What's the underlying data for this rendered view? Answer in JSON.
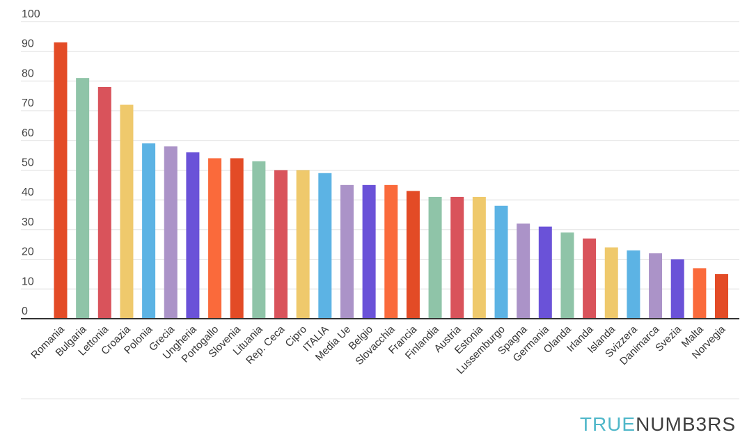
{
  "chart_data": {
    "type": "bar",
    "categories": [
      "Romania",
      "Bulgaria",
      "Lettonia",
      "Croazia",
      "Polonia",
      "Grecia",
      "Ungheria",
      "Portogallo",
      "Slovenia",
      "Lituania",
      "Rep. Ceca",
      "Cipro",
      "ITALIA",
      "Media Ue",
      "Belgio",
      "Slovacchia",
      "Francia",
      "Finlandia",
      "Austria",
      "Estonia",
      "Lussemburgo",
      "Spagna",
      "Germania",
      "Olanda",
      "Irlanda",
      "Islanda",
      "Svizzera",
      "Danimarca",
      "Svezia",
      "Malta",
      "Norvegia"
    ],
    "values": [
      93,
      81,
      78,
      72,
      59,
      58,
      56,
      54,
      54,
      53,
      50,
      50,
      49,
      45,
      45,
      45,
      43,
      41,
      41,
      41,
      38,
      32,
      31,
      29,
      27,
      24,
      23,
      22,
      20,
      17,
      15
    ],
    "bar_colors": [
      "#e34b26",
      "#8fc4a8",
      "#d9535b",
      "#efc96c",
      "#5cb3e4",
      "#ab93c8",
      "#6a52d8",
      "#fa6a3b",
      "#e34b26",
      "#8fc4a8",
      "#d9535b",
      "#efc96c",
      "#5cb3e4",
      "#ab93c8",
      "#6a52d8",
      "#fa6a3b",
      "#e34b26",
      "#8fc4a8",
      "#d9535b",
      "#efc96c",
      "#5cb3e4",
      "#ab93c8",
      "#6a52d8",
      "#8fc4a8",
      "#d9535b",
      "#efc96c",
      "#5cb3e4",
      "#ab93c8",
      "#6a52d8",
      "#fa6a3b",
      "#e34b26"
    ],
    "ylim": [
      0,
      100
    ],
    "yticks": [
      "0",
      "10",
      "20",
      "30",
      "40",
      "50",
      "60",
      "70",
      "80",
      "90",
      "100"
    ],
    "grid": true,
    "title": "",
    "xlabel": "",
    "ylabel": ""
  },
  "brand": {
    "part1": "TRUE",
    "part2": "NUMB3RS",
    "color1": "#4fb7c9",
    "color2": "#3e3e3e"
  }
}
